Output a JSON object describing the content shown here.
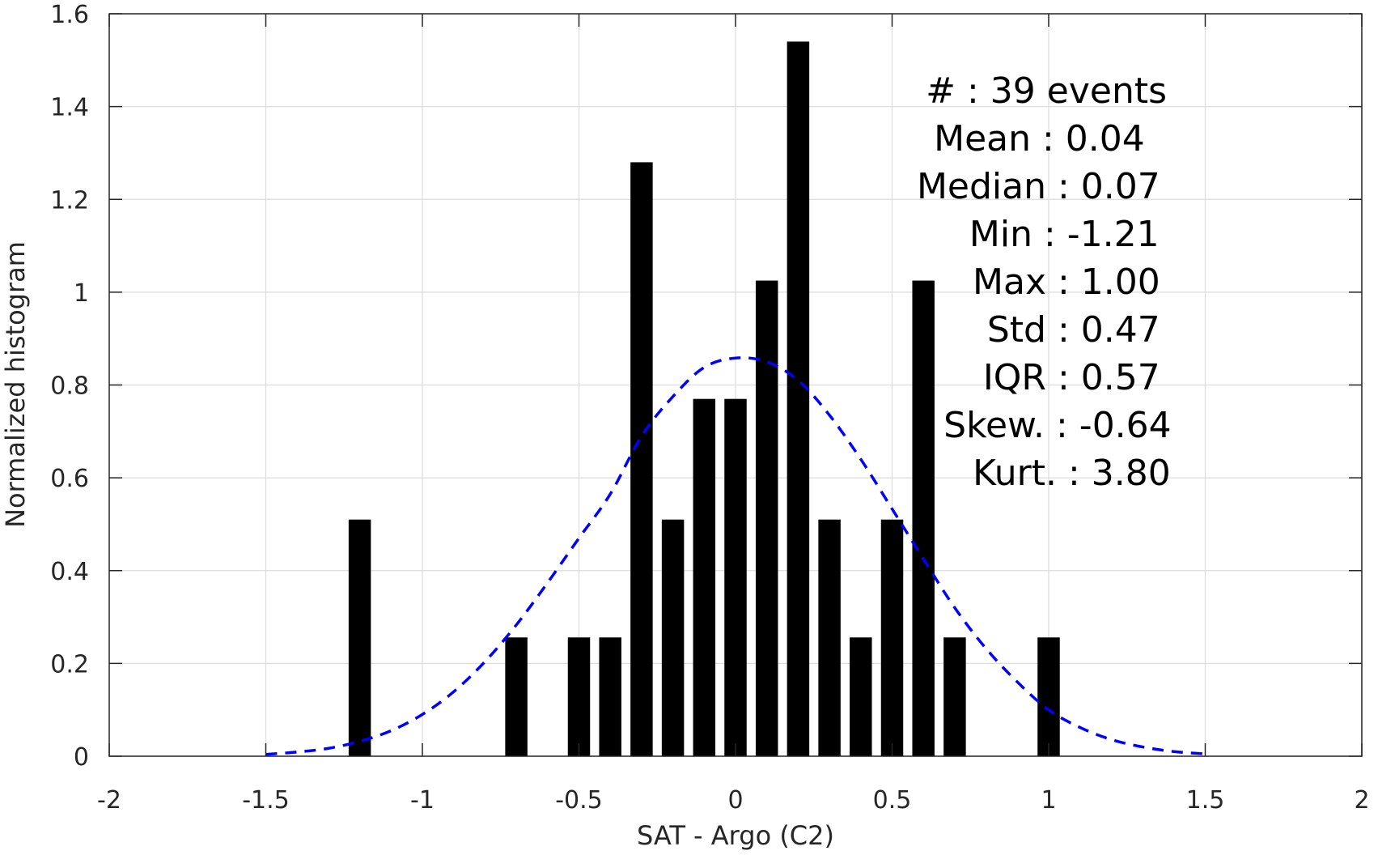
{
  "chart_data": {
    "type": "bar",
    "xlabel": "SAT - Argo (C2)",
    "ylabel": "Normalized histogram",
    "xlim": [
      -2,
      2
    ],
    "ylim": [
      0,
      1.6
    ],
    "xticks": [
      -2,
      -1.5,
      -1,
      -0.5,
      0,
      0.5,
      1,
      1.5,
      2
    ],
    "xtick_labels": [
      "-2",
      "-1.5",
      "-1",
      "-0.5",
      "0",
      "0.5",
      "1",
      "1.5",
      "2"
    ],
    "yticks": [
      0,
      0.2,
      0.4,
      0.6,
      0.8,
      1,
      1.2,
      1.4,
      1.6
    ],
    "ytick_labels": [
      "0",
      "0.2",
      "0.4",
      "0.6",
      "0.8",
      "1",
      "1.2",
      "1.4",
      "1.6"
    ],
    "grid": true,
    "bar_color": "#000000",
    "bins": [
      {
        "x": -1.2,
        "value": 0.51
      },
      {
        "x": -0.7,
        "value": 0.256
      },
      {
        "x": -0.5,
        "value": 0.256
      },
      {
        "x": -0.4,
        "value": 0.256
      },
      {
        "x": -0.3,
        "value": 1.28
      },
      {
        "x": -0.2,
        "value": 0.51
      },
      {
        "x": -0.1,
        "value": 0.77
      },
      {
        "x": 0.0,
        "value": 0.77
      },
      {
        "x": 0.1,
        "value": 1.025
      },
      {
        "x": 0.2,
        "value": 1.54
      },
      {
        "x": 0.3,
        "value": 0.51
      },
      {
        "x": 0.4,
        "value": 0.256
      },
      {
        "x": 0.5,
        "value": 0.51
      },
      {
        "x": 0.6,
        "value": 1.025
      },
      {
        "x": 0.7,
        "value": 0.256
      },
      {
        "x": 1.0,
        "value": 0.256
      }
    ],
    "fit_curve": {
      "style": "dashed",
      "color": "#0000ff",
      "x": [
        -1.5,
        -1.4,
        -1.3,
        -1.2,
        -1.1,
        -1.0,
        -0.9,
        -0.8,
        -0.7,
        -0.6,
        -0.5,
        -0.4,
        -0.3,
        -0.2,
        -0.1,
        0.0,
        0.1,
        0.2,
        0.3,
        0.4,
        0.5,
        0.6,
        0.7,
        0.8,
        0.9,
        1.0,
        1.1,
        1.2,
        1.3,
        1.4,
        1.5
      ],
      "y": [
        0.004,
        0.009,
        0.017,
        0.032,
        0.055,
        0.09,
        0.139,
        0.204,
        0.283,
        0.374,
        0.47,
        0.565,
        0.69,
        0.775,
        0.838,
        0.858,
        0.85,
        0.81,
        0.735,
        0.64,
        0.533,
        0.425,
        0.32,
        0.232,
        0.16,
        0.1,
        0.062,
        0.036,
        0.02,
        0.01,
        0.005
      ]
    },
    "stats": [
      {
        "label": "#",
        "value": ": 39 events"
      },
      {
        "label": "Mean",
        "value": ": 0.04"
      },
      {
        "label": "Median",
        "value": ": 0.07"
      },
      {
        "label": "Min",
        "value": ": -1.21"
      },
      {
        "label": "Max",
        "value": ": 1.00"
      },
      {
        "label": "Std",
        "value": ": 0.47"
      },
      {
        "label": "IQR",
        "value": ": 0.57"
      },
      {
        "label": "Skew.",
        "value": ": -0.64"
      },
      {
        "label": "Kurt.",
        "value": ": 3.80"
      }
    ]
  }
}
